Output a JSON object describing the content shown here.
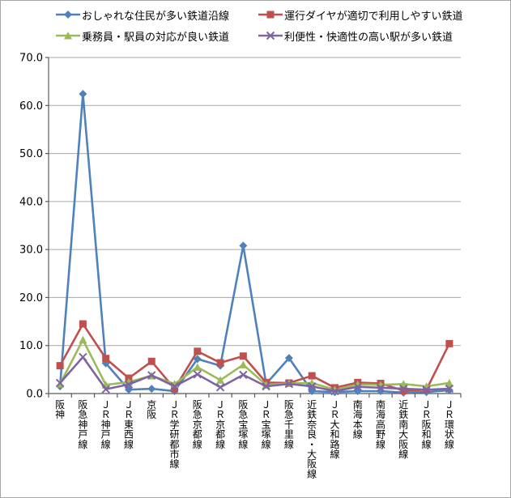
{
  "chart_data": {
    "type": "line",
    "title": "",
    "xlabel": "",
    "ylabel": "",
    "ylim": [
      0,
      70
    ],
    "y_ticks": [
      "0.0",
      "10.0",
      "20.0",
      "30.0",
      "40.0",
      "50.0",
      "60.0",
      "70.0"
    ],
    "grid": true,
    "legend_position": "top",
    "categories": [
      "阪神",
      "阪急神戸線",
      "ＪＲ神戸線",
      "ＪＲ東西線",
      "京阪",
      "ＪＲ学研都市線",
      "阪急京都線",
      "ＪＲ京都線",
      "阪急宝塚線",
      "ＪＲ宝塚線",
      "阪急千里線",
      "近鉄奈良・大阪線",
      "ＪＲ大和路線",
      "南海本線",
      "南海高野線",
      "近鉄南大阪線",
      "ＪＲ阪和線",
      "ＪＲ環状線"
    ],
    "series": [
      {
        "name": "おしゃれな住民が多い鉄道沿線",
        "color": "#4F81BD",
        "marker": "diamond",
        "values": [
          1.5,
          62.4,
          6.3,
          0.8,
          1.0,
          0.5,
          7.2,
          5.8,
          30.8,
          2.0,
          7.4,
          0.5,
          0.3,
          0.5,
          0.5,
          0.2,
          0.3,
          0.7
        ]
      },
      {
        "name": "運行ダイヤが適切で利用しやすい鉄道",
        "color": "#C0504D",
        "marker": "square",
        "values": [
          5.8,
          14.5,
          7.3,
          3.2,
          6.7,
          1.0,
          8.8,
          6.4,
          7.8,
          2.3,
          2.2,
          3.7,
          1.2,
          2.3,
          2.1,
          0.6,
          0.8,
          10.4
        ]
      },
      {
        "name": "乗務員・駅員の対応が良い鉄道",
        "color": "#9BBB59",
        "marker": "triangle",
        "values": [
          2.0,
          11.2,
          1.8,
          2.4,
          3.7,
          2.0,
          5.5,
          2.8,
          6.0,
          1.8,
          2.1,
          2.2,
          0.8,
          1.9,
          1.8,
          2.0,
          1.5,
          2.2
        ]
      },
      {
        "name": "利便性・快適性の高い駅が多い鉄道",
        "color": "#8064A2",
        "marker": "x",
        "values": [
          2.2,
          7.6,
          0.9,
          1.9,
          3.8,
          1.5,
          4.0,
          1.3,
          3.9,
          1.5,
          2.0,
          1.5,
          0.5,
          1.4,
          1.2,
          1.0,
          0.8,
          1.0
        ]
      }
    ],
    "axis_color": "#595959",
    "gridline_color": "#A6A6A6",
    "tick_label_color": "#000000"
  }
}
